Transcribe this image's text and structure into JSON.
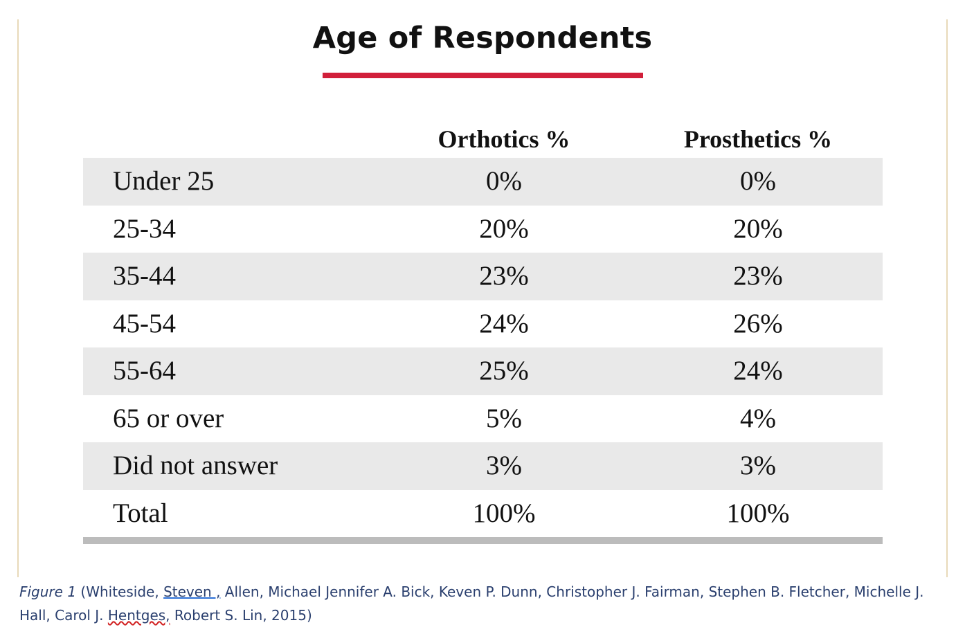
{
  "title": "Age of Respondents",
  "colors": {
    "accent_underline": "#d11f3a",
    "row_shade": "#e9e9e9",
    "bottom_rule": "#bcbcbc",
    "caption_text": "#2a3f6e"
  },
  "chart_data": {
    "type": "table",
    "title": "Age of Respondents",
    "columns": [
      "",
      "Orthotics %",
      "Prosthetics %"
    ],
    "rows": [
      {
        "label": "Under 25",
        "orthotics": "0%",
        "prosthetics": "0%"
      },
      {
        "label": "25-34",
        "orthotics": "20%",
        "prosthetics": "20%"
      },
      {
        "label": "35-44",
        "orthotics": "23%",
        "prosthetics": "23%"
      },
      {
        "label": "45-54",
        "orthotics": "24%",
        "prosthetics": "26%"
      },
      {
        "label": "55-64",
        "orthotics": "25%",
        "prosthetics": "24%"
      },
      {
        "label": "65 or over",
        "orthotics": "5%",
        "prosthetics": "4%"
      },
      {
        "label": "Did not answer",
        "orthotics": "3%",
        "prosthetics": "3%"
      },
      {
        "label": "Total",
        "orthotics": "100%",
        "prosthetics": "100%"
      }
    ]
  },
  "caption": {
    "figure_label": "Figure 1",
    "open": " (Whiteside, ",
    "underlined_name": "Steven ,",
    "middle": " Allen, Michael Jennifer A. Bick, Keven P. Dunn, Christopher J. Fairman, Stephen B. Fletcher, Michelle J. Hall, Carol J. ",
    "misspelled_name": "Hentges,",
    "close": " Robert S. Lin, 2015)"
  }
}
